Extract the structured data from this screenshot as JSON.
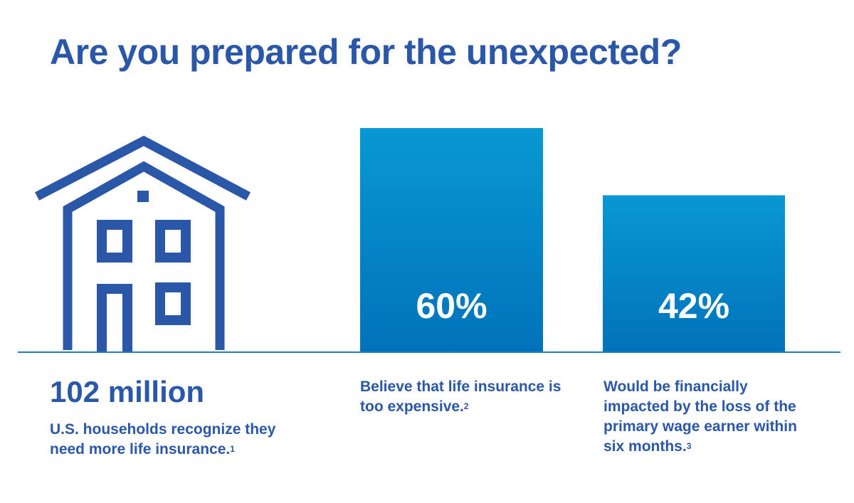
{
  "title": "Are you prepared for the unexpected?",
  "colors": {
    "primary": "#2b57a8",
    "bar_top": "#0898d3",
    "bar_bottom": "#0172ba",
    "baseline": "#1c7fc2",
    "house": "#2b57a8"
  },
  "house_icon": "house-icon",
  "households_stat": {
    "value": "102 million",
    "caption": "U.S. households recognize they need more life insurance.",
    "footnote": "1"
  },
  "chart_data": {
    "type": "bar",
    "categories": [
      "Believe that life insurance is too expensive.",
      "Would be financially impacted by the loss of the primary wage earner within six months."
    ],
    "values": [
      60,
      42
    ],
    "value_labels": [
      "60%",
      "42%"
    ],
    "footnotes": [
      "2",
      "3"
    ],
    "ylim": [
      0,
      100
    ],
    "grid": false
  }
}
